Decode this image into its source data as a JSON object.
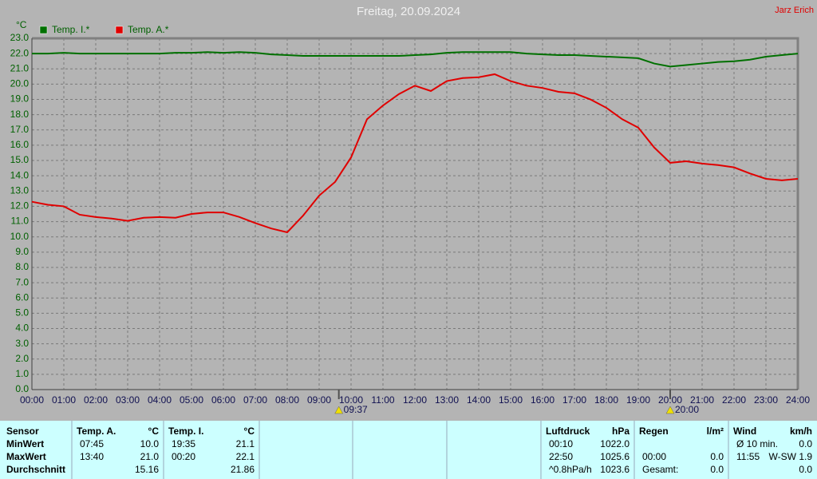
{
  "chart_data": {
    "type": "line",
    "title": "Freitag, 20.09.2024",
    "author": "Jarz Erich",
    "y_label": "°C",
    "x": [
      0,
      0.5,
      1,
      1.5,
      2,
      2.5,
      3,
      3.5,
      4,
      4.5,
      5,
      5.5,
      6,
      6.5,
      7,
      7.5,
      8,
      8.5,
      9,
      9.5,
      10,
      10.5,
      11,
      11.5,
      12,
      12.5,
      13,
      13.5,
      14,
      14.5,
      15,
      15.5,
      16,
      16.5,
      17,
      17.5,
      18,
      18.5,
      19,
      19.5,
      20,
      20.5,
      21,
      21.5,
      22,
      22.5,
      23,
      23.5,
      24
    ],
    "series": [
      {
        "name": "Temp. I.*",
        "color": "#007000",
        "values": [
          22.0,
          22.0,
          22.05,
          22.0,
          22.0,
          22.0,
          22.0,
          22.0,
          22.0,
          22.05,
          22.05,
          22.1,
          22.05,
          22.1,
          22.05,
          21.95,
          21.9,
          21.85,
          21.85,
          21.85,
          21.85,
          21.85,
          21.85,
          21.85,
          21.9,
          21.95,
          22.05,
          22.1,
          22.1,
          22.1,
          22.1,
          22.0,
          21.95,
          21.9,
          21.9,
          21.85,
          21.8,
          21.75,
          21.7,
          21.35,
          21.15,
          21.25,
          21.35,
          21.45,
          21.5,
          21.6,
          21.8,
          21.9,
          22.0
        ]
      },
      {
        "name": "Temp. A.*",
        "color": "#e00000",
        "values": [
          12.3,
          12.1,
          12.0,
          11.45,
          11.3,
          11.2,
          11.05,
          11.25,
          11.3,
          11.25,
          11.5,
          11.6,
          11.6,
          11.3,
          10.9,
          10.55,
          10.3,
          11.4,
          12.7,
          13.6,
          15.2,
          17.7,
          18.6,
          19.35,
          19.9,
          19.55,
          20.2,
          20.4,
          20.45,
          20.65,
          20.2,
          19.9,
          19.75,
          19.5,
          19.4,
          19.0,
          18.45,
          17.7,
          17.15,
          15.85,
          14.85,
          14.95,
          14.8,
          14.7,
          14.55,
          14.15,
          13.8,
          13.7,
          13.8
        ]
      }
    ],
    "xlim": [
      0,
      24
    ],
    "ylim": [
      0,
      23
    ],
    "xticks": [
      {
        "value": 0,
        "label": "00:00"
      },
      {
        "value": 1,
        "label": "01:00"
      },
      {
        "value": 2,
        "label": "02:00"
      },
      {
        "value": 3,
        "label": "03:00"
      },
      {
        "value": 4,
        "label": "04:00"
      },
      {
        "value": 5,
        "label": "05:00"
      },
      {
        "value": 6,
        "label": "06:00"
      },
      {
        "value": 7,
        "label": "07:00"
      },
      {
        "value": 8,
        "label": "08:00"
      },
      {
        "value": 9,
        "label": "09:00"
      },
      {
        "value": 10,
        "label": "10:00"
      },
      {
        "value": 11,
        "label": "11:00"
      },
      {
        "value": 12,
        "label": "12:00"
      },
      {
        "value": 13,
        "label": "13:00"
      },
      {
        "value": 14,
        "label": "14:00"
      },
      {
        "value": 15,
        "label": "15:00"
      },
      {
        "value": 16,
        "label": "16:00"
      },
      {
        "value": 17,
        "label": "17:00"
      },
      {
        "value": 18,
        "label": "18:00"
      },
      {
        "value": 19,
        "label": "19:00"
      },
      {
        "value": 20,
        "label": "20:00"
      },
      {
        "value": 21,
        "label": "21:00"
      },
      {
        "value": 22,
        "label": "22:00"
      },
      {
        "value": 23,
        "label": "23:00"
      },
      {
        "value": 24,
        "label": "24:00"
      }
    ],
    "yticks": [
      {
        "value": 0,
        "label": "0.0"
      },
      {
        "value": 1,
        "label": "1.0"
      },
      {
        "value": 2,
        "label": "2.0"
      },
      {
        "value": 3,
        "label": "3.0"
      },
      {
        "value": 4,
        "label": "4.0"
      },
      {
        "value": 5,
        "label": "5.0"
      },
      {
        "value": 6,
        "label": "6.0"
      },
      {
        "value": 7,
        "label": "7.0"
      },
      {
        "value": 8,
        "label": "8.0"
      },
      {
        "value": 9,
        "label": "9.0"
      },
      {
        "value": 10,
        "label": "10.0"
      },
      {
        "value": 11,
        "label": "11.0"
      },
      {
        "value": 12,
        "label": "12.0"
      },
      {
        "value": 13,
        "label": "13.0"
      },
      {
        "value": 14,
        "label": "14.0"
      },
      {
        "value": 15,
        "label": "15.0"
      },
      {
        "value": 16,
        "label": "16.0"
      },
      {
        "value": 17,
        "label": "17.0"
      },
      {
        "value": 18,
        "label": "18.0"
      },
      {
        "value": 19,
        "label": "19.0"
      },
      {
        "value": 20,
        "label": "20.0"
      },
      {
        "value": 21,
        "label": "21.0"
      },
      {
        "value": 22,
        "label": "22.0"
      },
      {
        "value": 23,
        "label": "23.0"
      }
    ],
    "grid": true,
    "annotations": [
      {
        "x": 9.617,
        "label": "09:37"
      },
      {
        "x": 20,
        "label": "20:00"
      }
    ]
  },
  "table": {
    "header": "Sensor",
    "row_labels": [
      "MinWert",
      "MaxWert",
      "Durchschnitt"
    ],
    "blocks": [
      {
        "header": [
          "Temp. A.",
          "°C"
        ],
        "rows": [
          [
            "07:45",
            "10.0"
          ],
          [
            "13:40",
            "21.0"
          ],
          [
            "15.16"
          ]
        ]
      },
      {
        "header": [
          "Temp. I.",
          "°C"
        ],
        "rows": [
          [
            "19:35",
            "21.1"
          ],
          [
            "00:20",
            "22.1"
          ],
          [
            "21.86"
          ]
        ]
      },
      {
        "header": [
          "Luftdruck",
          "hPa"
        ],
        "rows": [
          [
            "00:10",
            "1022.0"
          ],
          [
            "22:50",
            "1025.6"
          ],
          [
            "^0.8hPa/h",
            "1023.6"
          ]
        ]
      },
      {
        "header": [
          "Regen",
          "l/m²"
        ],
        "rows": [
          null,
          [
            "00:00",
            "0.0"
          ],
          [
            "Gesamt:",
            "0.0"
          ]
        ]
      },
      {
        "header": [
          "Wind",
          "km/h"
        ],
        "rows": [
          [
            "Ø 10 min.",
            "0.0"
          ],
          [
            "11:55",
            "W-SW 1.9"
          ],
          [
            "0.0"
          ]
        ]
      }
    ]
  }
}
